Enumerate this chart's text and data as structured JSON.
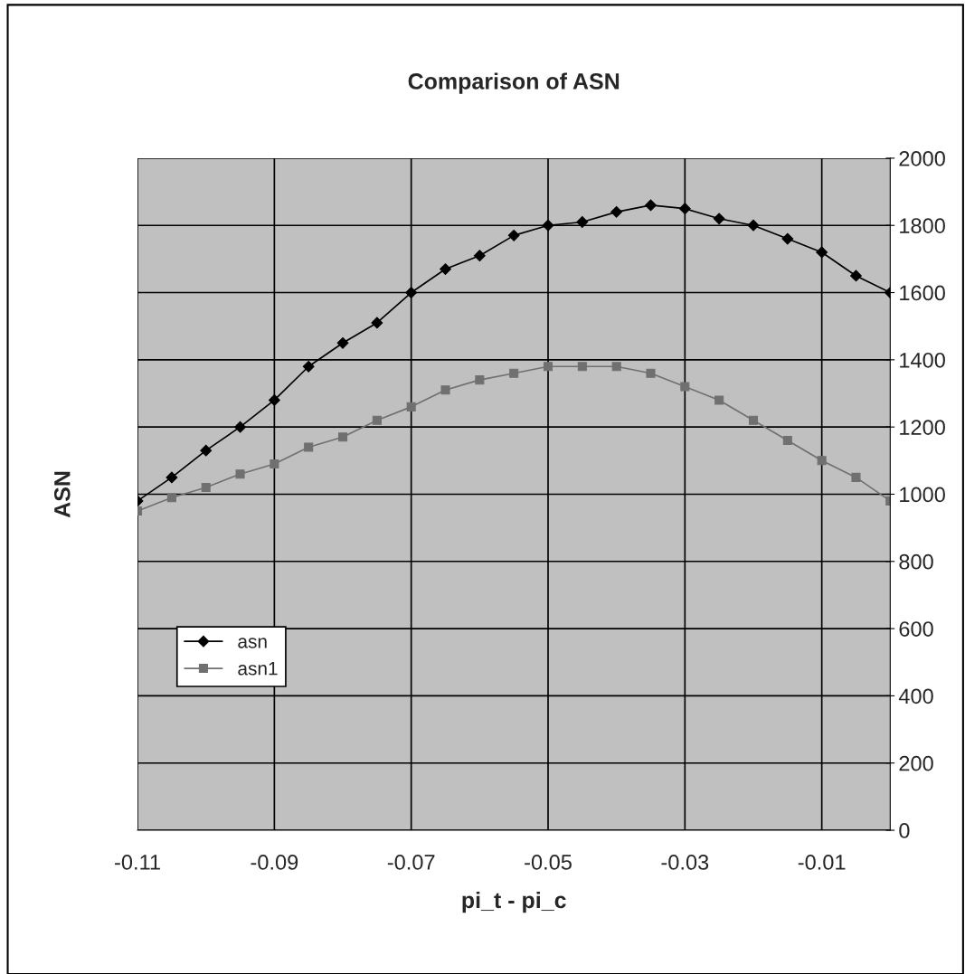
{
  "chart_data": {
    "type": "line",
    "title": "Comparison of ASN",
    "xlabel": "pi_t - pi_c",
    "ylabel": "ASN",
    "x": [
      -0.11,
      -0.105,
      -0.1,
      -0.095,
      -0.09,
      -0.085,
      -0.08,
      -0.075,
      -0.07,
      -0.065,
      -0.06,
      -0.055,
      -0.05,
      -0.045,
      -0.04,
      -0.035,
      -0.03,
      -0.025,
      -0.02,
      -0.015,
      -0.01,
      -0.005,
      0
    ],
    "series": [
      {
        "name": "asn",
        "color": "#000000",
        "marker": "diamond",
        "values": [
          980,
          1050,
          1130,
          1200,
          1280,
          1380,
          1450,
          1510,
          1600,
          1670,
          1710,
          1770,
          1800,
          1810,
          1840,
          1860,
          1850,
          1820,
          1800,
          1760,
          1720,
          1650,
          1600
        ]
      },
      {
        "name": "asn1",
        "color": "#707070",
        "marker": "square",
        "values": [
          950,
          990,
          1020,
          1060,
          1090,
          1140,
          1170,
          1220,
          1260,
          1310,
          1340,
          1360,
          1380,
          1380,
          1380,
          1360,
          1320,
          1280,
          1220,
          1160,
          1100,
          1050,
          980
        ]
      }
    ],
    "xlim": [
      -0.11,
      0
    ],
    "xticks": [
      -0.11,
      -0.09,
      -0.07,
      -0.05,
      -0.03,
      -0.01
    ],
    "ylim": [
      0,
      2000
    ],
    "yticks": [
      0,
      200,
      400,
      600,
      800,
      1000,
      1200,
      1400,
      1600,
      1800,
      2000
    ],
    "grid": true,
    "legend": "bottom left",
    "line_style": "solid"
  }
}
